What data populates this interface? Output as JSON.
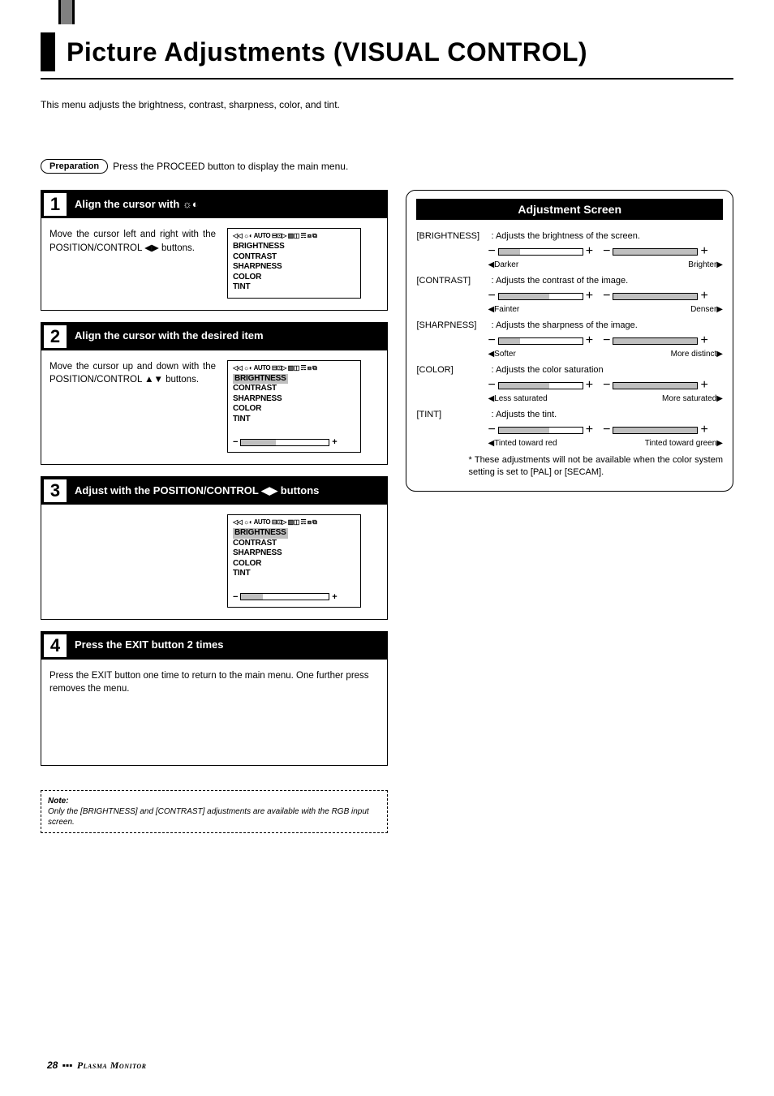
{
  "page_title": "Picture Adjustments (VISUAL CONTROL)",
  "intro": "This menu adjusts the brightness, contrast, sharpness, color, and tint.",
  "preparation": {
    "label": "Preparation",
    "text": "Press the PROCEED button to display the main menu."
  },
  "steps": [
    {
      "num": "1",
      "title": "Align the cursor with ☼◐",
      "desc": "Move the cursor left and right with the POSITION/CONTROL ◀▶ buttons.",
      "osd_items": [
        "BRIGHTNESS",
        "CONTRAST",
        "SHARPNESS",
        "COLOR",
        "TINT"
      ],
      "highlight_index": -1,
      "show_slider": false,
      "full_width": false
    },
    {
      "num": "2",
      "title": "Align the cursor with the desired item",
      "desc": "Move the cursor up and down with the POSITION/CONTROL ▲▼ buttons.",
      "osd_items": [
        "BRIGHTNESS",
        "CONTRAST",
        "SHARPNESS",
        "COLOR",
        "TINT"
      ],
      "highlight_index": 0,
      "show_slider": true,
      "slider_fill_pct": 40,
      "full_width": false
    },
    {
      "num": "3",
      "title": "Adjust with the POSITION/CONTROL ◀▶ buttons",
      "desc": "",
      "osd_items": [
        "BRIGHTNESS",
        "CONTRAST",
        "SHARPNESS",
        "COLOR",
        "TINT"
      ],
      "highlight_index": 0,
      "show_slider": true,
      "slider_fill_pct": 25,
      "full_width": false
    },
    {
      "num": "4",
      "title": "Press the EXIT button 2 times",
      "desc": "Press the EXIT button one time to return to the main menu. One further press removes the menu.",
      "full_width": true
    }
  ],
  "osd_icon_row": "◁◁ ☼◐ AUTO ⊟⊡▷ ▥◫ ☴ ⧈ ⧉",
  "note": {
    "label": "Note:",
    "text": "Only the [BRIGHTNESS] and [CONTRAST] adjustments are available with the RGB input screen."
  },
  "adjustment_screen": {
    "title": "Adjustment Screen",
    "rows": [
      {
        "name": "[BRIGHTNESS]",
        "desc": ": Adjusts the brightness of the screen.",
        "left_fill": 25,
        "right_fill": 100,
        "left_legend": "◀Darker",
        "right_legend": "Brighter▶"
      },
      {
        "name": "[CONTRAST]",
        "desc": ": Adjusts the contrast of the image.",
        "left_fill": 60,
        "right_fill": 100,
        "left_legend": "◀Fainter",
        "right_legend": "Denser▶"
      },
      {
        "name": "[SHARPNESS]",
        "desc": ": Adjusts the sharpness of the image.",
        "left_fill": 25,
        "right_fill": 100,
        "left_legend": "◀Softer",
        "right_legend": "More distinct▶"
      },
      {
        "name": "[COLOR]",
        "desc": ": Adjusts the color saturation",
        "left_fill": 60,
        "right_fill": 100,
        "left_legend": "◀Less saturated",
        "right_legend": "More saturated▶"
      },
      {
        "name": "[TINT]",
        "desc": ": Adjusts the tint.",
        "left_fill": 60,
        "right_fill": 100,
        "left_legend": "◀Tinted toward red",
        "right_legend": "Tinted toward green▶"
      }
    ],
    "footnote": "* These adjustments will not be available when the color system setting is set to [PAL] or [SECAM]."
  },
  "footer": {
    "page_num": "28",
    "brand": "Plasma Monitor"
  },
  "colors": {
    "black": "#000000",
    "white": "#ffffff",
    "gray_fill": "#bfbfbf",
    "tab_gray": "#808080"
  }
}
